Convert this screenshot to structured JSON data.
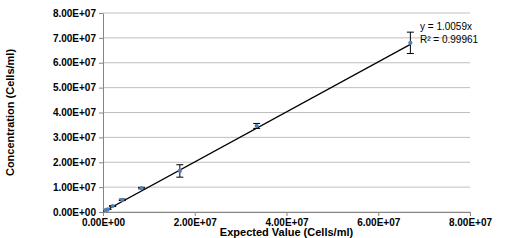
{
  "chart_data": {
    "type": "scatter",
    "x_label": "Expected Value (Cells/ml)",
    "y_label": "Concentration (Cells/ml)",
    "x": [
      67000000,
      33500000,
      16750000,
      8400000,
      4200000,
      2100000,
      1050000,
      520000
    ],
    "values": [
      68000000,
      34600000,
      16500000,
      9600000,
      4900000,
      2400000,
      1100000,
      550000
    ],
    "errors": [
      4300000,
      1000000,
      2500000,
      300000,
      300000,
      200000,
      100000,
      50000
    ],
    "color": "#4f81bd",
    "marker": "circle",
    "trendline": {
      "x": [
        0,
        67000000
      ],
      "values": [
        0,
        67395300
      ],
      "color": "#000000"
    },
    "annotations": [
      "y = 1.0059x",
      "R² = 0.99961"
    ],
    "xlim": [
      0,
      80000000
    ],
    "ylim": [
      0,
      80000000
    ],
    "xticks": [
      {
        "value": 0,
        "label": "0.00E+00"
      },
      {
        "value": 20000000,
        "label": "2.00E+07"
      },
      {
        "value": 40000000,
        "label": "4.00E+07"
      },
      {
        "value": 60000000,
        "label": "6.00E+07"
      },
      {
        "value": 80000000,
        "label": "8.00E+07"
      }
    ],
    "yticks": [
      {
        "value": 0,
        "label": "0.00E+00"
      },
      {
        "value": 10000000,
        "label": "1.00E+07"
      },
      {
        "value": 20000000,
        "label": "2.00E+07"
      },
      {
        "value": 30000000,
        "label": "3.00E+07"
      },
      {
        "value": 40000000,
        "label": "4.00E+07"
      },
      {
        "value": 50000000,
        "label": "5.00E+07"
      },
      {
        "value": 60000000,
        "label": "6.00E+07"
      },
      {
        "value": 70000000,
        "label": "7.00E+07"
      },
      {
        "value": 80000000,
        "label": "8.00E+07"
      }
    ],
    "grid": true
  }
}
